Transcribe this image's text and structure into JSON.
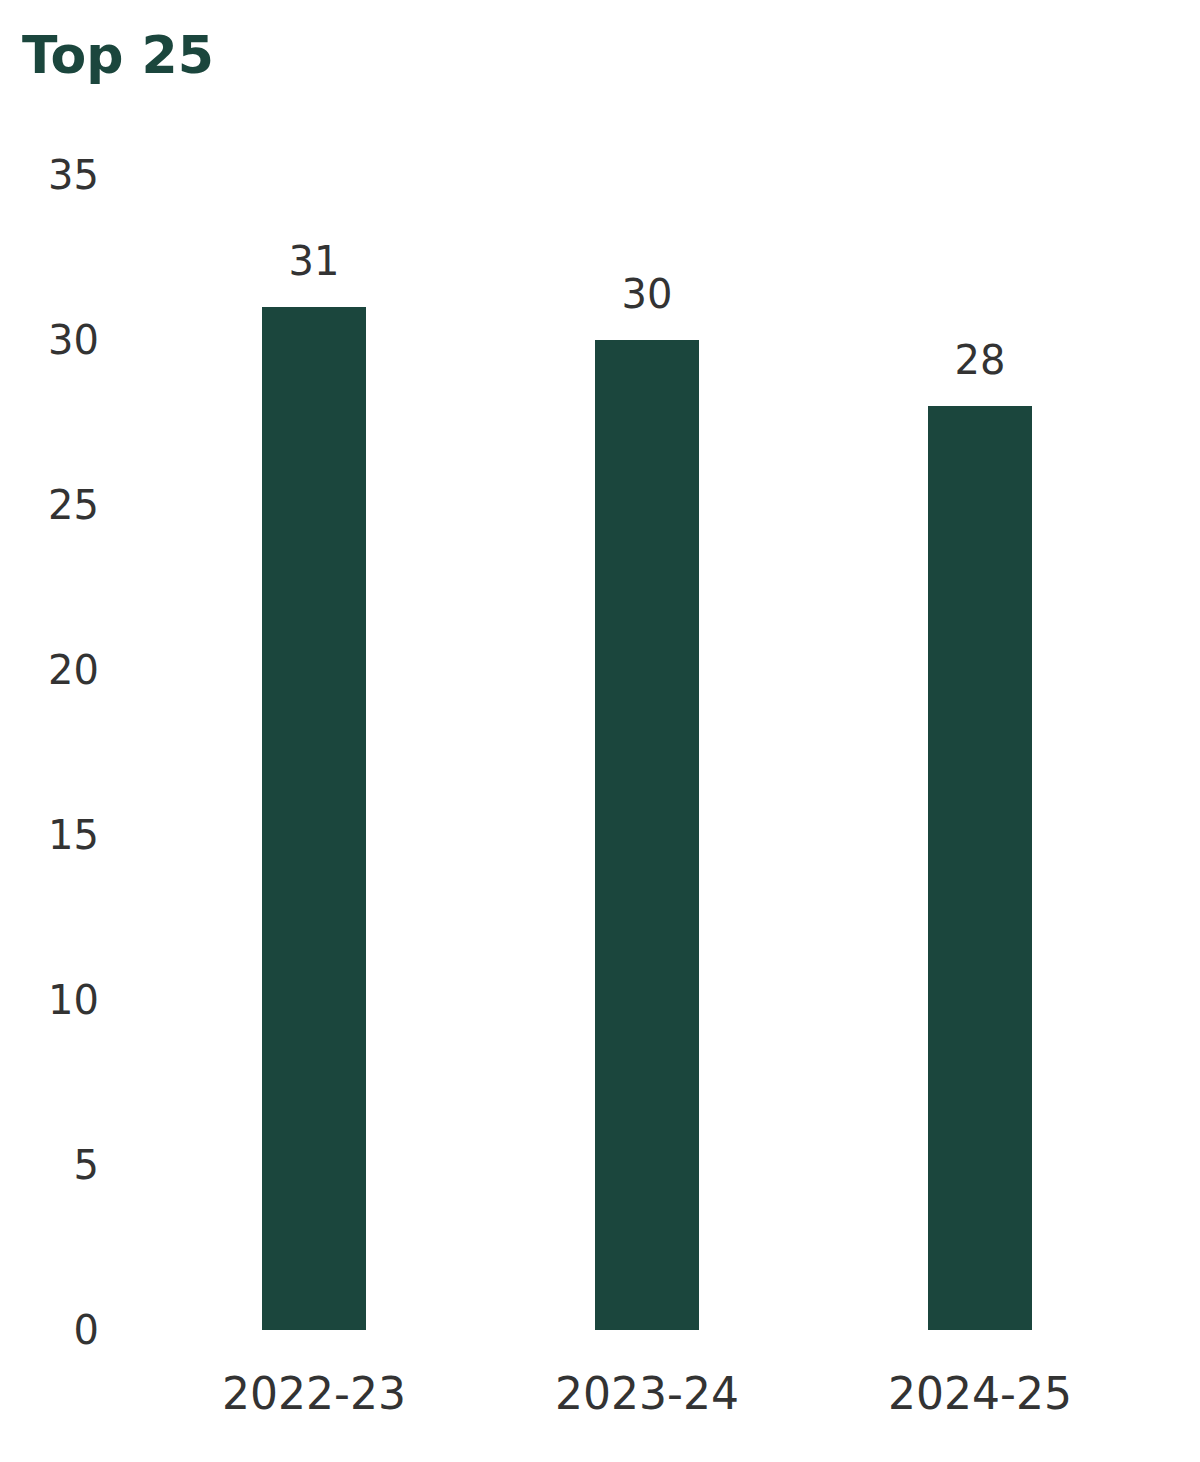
{
  "chart_data": {
    "type": "bar",
    "title": "Top 25",
    "categories": [
      "2022-23",
      "2023-24",
      "2024-25"
    ],
    "values": [
      31,
      30,
      28
    ],
    "color": "#1b463d",
    "ylim": [
      0,
      35
    ],
    "yticks": [
      0,
      5,
      10,
      15,
      20,
      25,
      30,
      35
    ],
    "grid": false,
    "data_labels": true
  }
}
